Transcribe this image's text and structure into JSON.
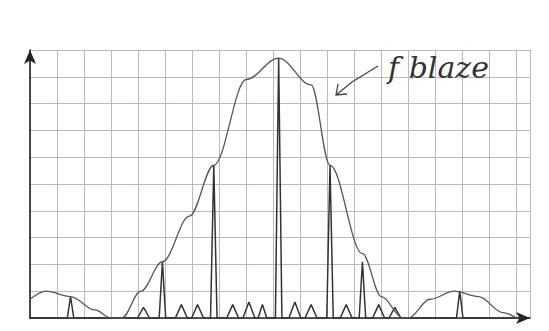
{
  "chart_data": {
    "type": "line",
    "annotation": "f blaze",
    "xlim": [
      0,
      18.5
    ],
    "ylim": [
      0,
      10
    ],
    "xticks": [
      0,
      1,
      2,
      3,
      4,
      5,
      6,
      7,
      8,
      9,
      10,
      11,
      12,
      13,
      14,
      15,
      16,
      17,
      18
    ],
    "yticks": [
      0,
      1,
      2,
      3,
      4,
      5,
      6,
      7,
      8,
      9,
      10
    ],
    "grid": true,
    "tick_labels": false,
    "series": [
      {
        "type": "line",
        "color": "#333333",
        "line_style": "solid",
        "x": [
          0,
          1.38,
          1.5,
          1.62,
          3.98,
          4.2,
          4.42,
          4.78,
          4.9,
          5.02,
          5.38,
          5.6,
          5.82,
          5.98,
          6.2,
          6.42,
          6.68,
          6.8,
          6.92,
          7.28,
          7.5,
          7.72,
          7.88,
          8.1,
          8.32,
          8.44,
          8.6,
          8.76,
          9.08,
          9.2,
          9.32,
          9.58,
          9.8,
          10.02,
          10.18,
          10.4,
          10.62,
          10.98,
          11.1,
          11.22,
          11.48,
          11.7,
          11.92,
          12.18,
          12.3,
          12.42,
          12.68,
          12.9,
          13.12,
          13.28,
          13.5,
          13.72,
          15.78,
          15.9,
          16.02,
          18.2
        ],
        "values": [
          0,
          0,
          0.8,
          0,
          0,
          0.4,
          0,
          0,
          2.1,
          0,
          0,
          0.5,
          0,
          0,
          0.5,
          0,
          0,
          5.7,
          0,
          0,
          0.5,
          0,
          0,
          0.6,
          0,
          0,
          0.5,
          0,
          0,
          9.7,
          0,
          0,
          0.6,
          0,
          0,
          0.5,
          0,
          0,
          5.7,
          0,
          0,
          0.5,
          0,
          0,
          2.1,
          0,
          0,
          0.5,
          0,
          0,
          0.4,
          0,
          0,
          1.0,
          0,
          0
        ]
      },
      {
        "type": "line",
        "color": "#555555",
        "line_style": "smooth",
        "x": [
          0,
          0.6,
          1.5,
          2.4,
          3.0,
          3.4,
          4.1,
          4.9,
          5.9,
          6.8,
          8.0,
          9.2,
          10.4,
          11.1,
          12.3,
          13.0,
          13.8,
          14.0,
          14.8,
          15.7,
          16.6,
          17.5,
          18.0
        ],
        "values": [
          0.7,
          1.0,
          0.8,
          0.3,
          0,
          0,
          1.0,
          2.1,
          3.8,
          5.7,
          8.9,
          9.7,
          8.7,
          5.7,
          2.4,
          0.8,
          0,
          0,
          0.7,
          1.0,
          0.8,
          0.2,
          0
        ]
      }
    ]
  }
}
